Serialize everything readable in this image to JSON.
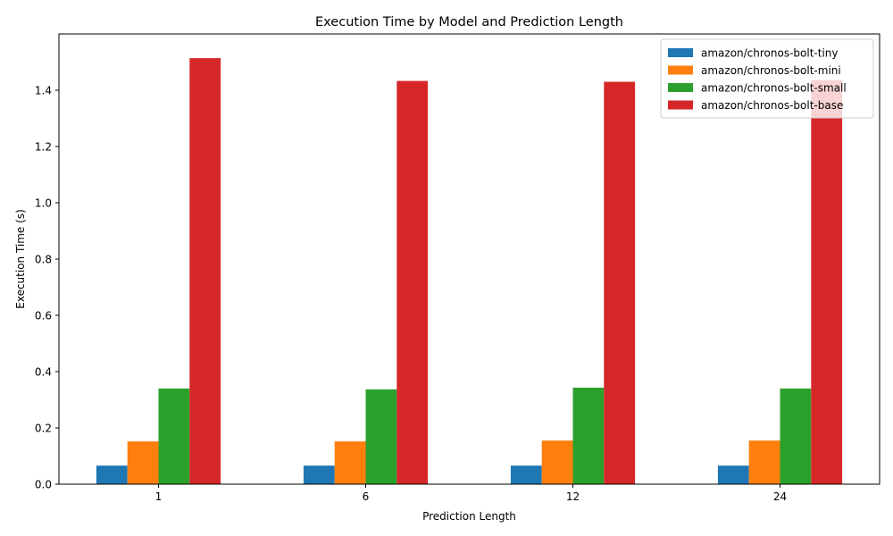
{
  "chart_data": {
    "type": "bar",
    "title": "Execution Time by Model and Prediction Length",
    "xlabel": "Prediction Length",
    "ylabel": "Execution Time (s)",
    "categories": [
      "1",
      "6",
      "12",
      "24"
    ],
    "ylim": [
      0,
      1.6
    ],
    "yticks": [
      0.0,
      0.2,
      0.4,
      0.6,
      0.8,
      1.0,
      1.2,
      1.4
    ],
    "ytick_labels": [
      "0.0",
      "0.2",
      "0.4",
      "0.6",
      "0.8",
      "1.0",
      "1.2",
      "1.4"
    ],
    "grid": false,
    "legend_position": "top-right",
    "series": [
      {
        "name": "amazon/chronos-bolt-tiny",
        "color": "#1f77b4",
        "values": [
          0.066,
          0.066,
          0.066,
          0.066
        ]
      },
      {
        "name": "amazon/chronos-bolt-mini",
        "color": "#ff7f0e",
        "values": [
          0.152,
          0.152,
          0.155,
          0.155
        ]
      },
      {
        "name": "amazon/chronos-bolt-small",
        "color": "#2ca02c",
        "values": [
          0.34,
          0.337,
          0.343,
          0.34
        ]
      },
      {
        "name": "amazon/chronos-bolt-base",
        "color": "#d62728",
        "values": [
          1.514,
          1.433,
          1.43,
          1.436
        ]
      }
    ]
  }
}
